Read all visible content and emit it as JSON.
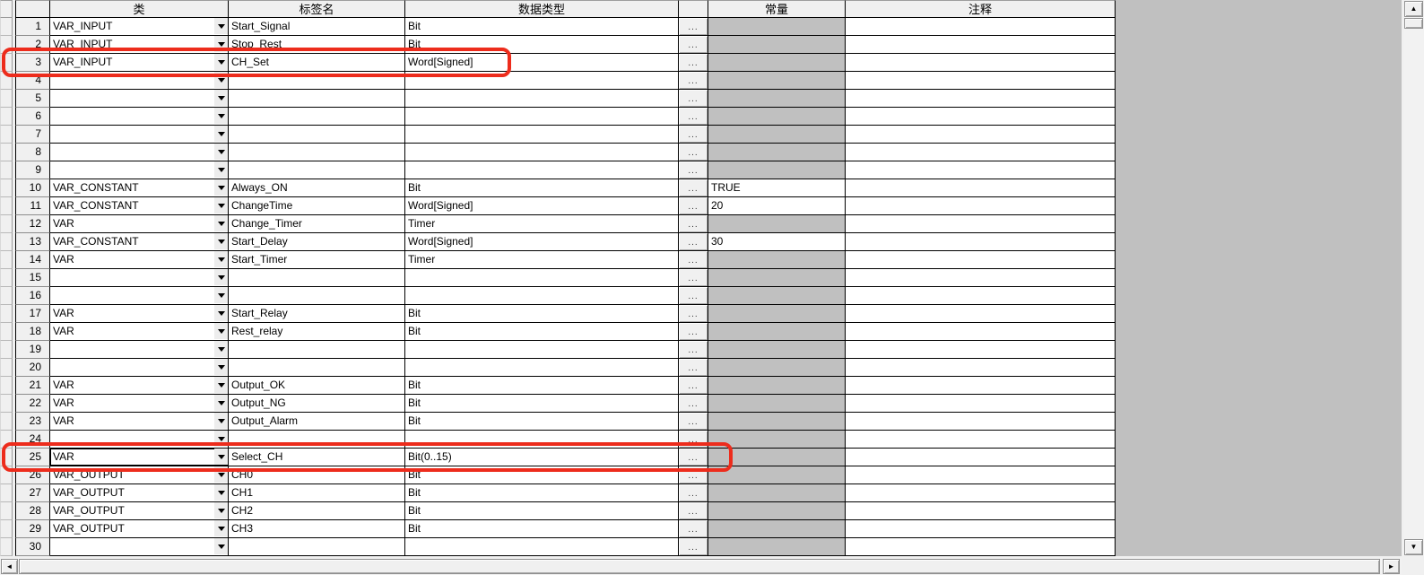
{
  "editor": {
    "columns": {
      "class": "类",
      "label": "标签名",
      "data_type": "数据类型",
      "constant": "常量",
      "comment": "注释"
    },
    "dots_button_label": "...",
    "rows": [
      {
        "num": "1",
        "class": "VAR_INPUT",
        "label": "Start_Signal",
        "data_type": "Bit",
        "constant": "",
        "is_constant": false,
        "selected": false
      },
      {
        "num": "2",
        "class": "VAR_INPUT",
        "label": "Stop_Rest",
        "data_type": "Bit",
        "constant": "",
        "is_constant": false,
        "selected": false
      },
      {
        "num": "3",
        "class": "VAR_INPUT",
        "label": "CH_Set",
        "data_type": "Word[Signed]",
        "constant": "",
        "is_constant": false,
        "selected": false
      },
      {
        "num": "4",
        "class": "",
        "label": "",
        "data_type": "",
        "constant": "",
        "is_constant": false,
        "selected": false
      },
      {
        "num": "5",
        "class": "",
        "label": "",
        "data_type": "",
        "constant": "",
        "is_constant": false,
        "selected": false
      },
      {
        "num": "6",
        "class": "",
        "label": "",
        "data_type": "",
        "constant": "",
        "is_constant": false,
        "selected": false
      },
      {
        "num": "7",
        "class": "",
        "label": "",
        "data_type": "",
        "constant": "",
        "is_constant": false,
        "selected": false
      },
      {
        "num": "8",
        "class": "",
        "label": "",
        "data_type": "",
        "constant": "",
        "is_constant": false,
        "selected": false
      },
      {
        "num": "9",
        "class": "",
        "label": "",
        "data_type": "",
        "constant": "",
        "is_constant": false,
        "selected": false
      },
      {
        "num": "10",
        "class": "VAR_CONSTANT",
        "label": "Always_ON",
        "data_type": "Bit",
        "constant": "TRUE",
        "is_constant": true,
        "selected": false
      },
      {
        "num": "11",
        "class": "VAR_CONSTANT",
        "label": "ChangeTime",
        "data_type": "Word[Signed]",
        "constant": "20",
        "is_constant": true,
        "selected": false
      },
      {
        "num": "12",
        "class": "VAR",
        "label": "Change_Timer",
        "data_type": "Timer",
        "constant": "",
        "is_constant": false,
        "selected": false
      },
      {
        "num": "13",
        "class": "VAR_CONSTANT",
        "label": "Start_Delay",
        "data_type": "Word[Signed]",
        "constant": "30",
        "is_constant": true,
        "selected": false
      },
      {
        "num": "14",
        "class": "VAR",
        "label": "Start_Timer",
        "data_type": "Timer",
        "constant": "",
        "is_constant": false,
        "selected": false
      },
      {
        "num": "15",
        "class": "",
        "label": "",
        "data_type": "",
        "constant": "",
        "is_constant": false,
        "selected": false
      },
      {
        "num": "16",
        "class": "",
        "label": "",
        "data_type": "",
        "constant": "",
        "is_constant": false,
        "selected": false
      },
      {
        "num": "17",
        "class": "VAR",
        "label": "Start_Relay",
        "data_type": "Bit",
        "constant": "",
        "is_constant": false,
        "selected": false
      },
      {
        "num": "18",
        "class": "VAR",
        "label": "Rest_relay",
        "data_type": "Bit",
        "constant": "",
        "is_constant": false,
        "selected": false
      },
      {
        "num": "19",
        "class": "",
        "label": "",
        "data_type": "",
        "constant": "",
        "is_constant": false,
        "selected": false
      },
      {
        "num": "20",
        "class": "",
        "label": "",
        "data_type": "",
        "constant": "",
        "is_constant": false,
        "selected": false
      },
      {
        "num": "21",
        "class": "VAR",
        "label": "Output_OK",
        "data_type": "Bit",
        "constant": "",
        "is_constant": false,
        "selected": false
      },
      {
        "num": "22",
        "class": "VAR",
        "label": "Output_NG",
        "data_type": "Bit",
        "constant": "",
        "is_constant": false,
        "selected": false
      },
      {
        "num": "23",
        "class": "VAR",
        "label": "Output_Alarm",
        "data_type": "Bit",
        "constant": "",
        "is_constant": false,
        "selected": false
      },
      {
        "num": "24",
        "class": "",
        "label": "",
        "data_type": "",
        "constant": "",
        "is_constant": false,
        "selected": false
      },
      {
        "num": "25",
        "class": "VAR",
        "label": "Select_CH",
        "data_type": "Bit(0..15)",
        "constant": "",
        "is_constant": false,
        "selected": true
      },
      {
        "num": "26",
        "class": "VAR_OUTPUT",
        "label": "CH0",
        "data_type": "Bit",
        "constant": "",
        "is_constant": false,
        "selected": false
      },
      {
        "num": "27",
        "class": "VAR_OUTPUT",
        "label": "CH1",
        "data_type": "Bit",
        "constant": "",
        "is_constant": false,
        "selected": false
      },
      {
        "num": "28",
        "class": "VAR_OUTPUT",
        "label": "CH2",
        "data_type": "Bit",
        "constant": "",
        "is_constant": false,
        "selected": false
      },
      {
        "num": "29",
        "class": "VAR_OUTPUT",
        "label": "CH3",
        "data_type": "Bit",
        "constant": "",
        "is_constant": false,
        "selected": false
      },
      {
        "num": "30",
        "class": "",
        "label": "",
        "data_type": "",
        "constant": "",
        "is_constant": false,
        "selected": false
      }
    ],
    "highlights": [
      {
        "row": 3,
        "through_column": "data_type"
      },
      {
        "row": 25,
        "through_column": "dots"
      }
    ],
    "colors": {
      "grid_line": "#000000",
      "header_bg": "#f0f0f0",
      "disabled_cell_bg": "#c0c0c0",
      "cell_bg": "#ffffff",
      "highlight_red": "#ed2c1c"
    },
    "scrollbar_glyphs": {
      "up": "▲",
      "down": "▼",
      "left": "◄",
      "right": "►"
    }
  }
}
